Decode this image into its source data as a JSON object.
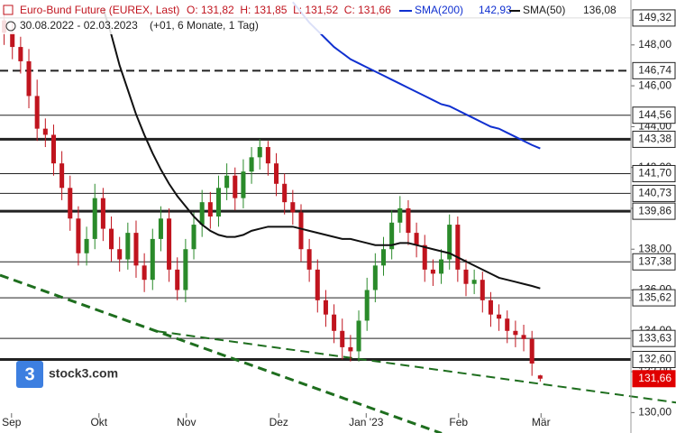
{
  "chart_data": {
    "type": "candlestick",
    "title": "Euro-Bund Future (EUREX, Last)",
    "ohlc_label": "O: 131,82  H: 131,85  L: 131,52  C: 131,66",
    "range_label": "30.08.2022 - 02.03.2023",
    "period_label": "(+01, 6 Monate, 1 Tag)",
    "logo": {
      "icon": "3",
      "text": "stock3.com"
    },
    "up_color": "#2a8a2a",
    "down_color": "#c0141e",
    "xlim": [
      -0.5,
      76
    ],
    "ylim": [
      129,
      150.2
    ],
    "xticks": [
      {
        "value": 0.9,
        "label": "Sep"
      },
      {
        "value": 11.5,
        "label": "Okt"
      },
      {
        "value": 22.1,
        "label": "Nov"
      },
      {
        "value": 33.3,
        "label": "Dez"
      },
      {
        "value": 43.9,
        "label": "Jan '23"
      },
      {
        "value": 55.1,
        "label": "Feb"
      },
      {
        "value": 65.1,
        "label": "Mär"
      }
    ],
    "yticks": [
      {
        "value": 130,
        "label": "130,00"
      },
      {
        "value": 132,
        "label": "132,00"
      },
      {
        "value": 134,
        "label": "134,00"
      },
      {
        "value": 136,
        "label": "136,00"
      },
      {
        "value": 138,
        "label": "138,00"
      },
      {
        "value": 140,
        "label": "140,00"
      },
      {
        "value": 142,
        "label": "142,00"
      },
      {
        "value": 144,
        "label": "144,00"
      },
      {
        "value": 146,
        "label": "146,00"
      },
      {
        "value": 148,
        "label": "148,00"
      }
    ],
    "candles": {
      "open": [
        149.2,
        148.6,
        147.9,
        147.2,
        145.5,
        143.9,
        143.6,
        142.2,
        141.0,
        139.5,
        137.8,
        138.5,
        140.5,
        139.0,
        138.0,
        137.5,
        138.8,
        137.2,
        136.5,
        138.5,
        139.5,
        137.0,
        136.0,
        138.0,
        139.2,
        140.3,
        139.6,
        141.0,
        141.6,
        140.5,
        141.8,
        142.5,
        143.0,
        142.2,
        141.2,
        140.3,
        139.8,
        138.0,
        137.0,
        135.5,
        134.8,
        134.0,
        133.2,
        133.0,
        134.5,
        136.0,
        137.2,
        138.0,
        139.3,
        140.0,
        138.8,
        138.2,
        137.0,
        136.8,
        137.5,
        139.2,
        137.0,
        136.3,
        136.5,
        135.5,
        134.8,
        134.6,
        134.0,
        133.8,
        133.6,
        131.82
      ],
      "high": [
        149.8,
        149.1,
        148.4,
        147.8,
        146.3,
        144.4,
        144.1,
        142.8,
        141.6,
        140.1,
        139.1,
        141.2,
        141.0,
        139.6,
        138.6,
        139.3,
        139.4,
        137.8,
        139.0,
        140.1,
        140.0,
        137.6,
        138.5,
        139.8,
        140.9,
        140.8,
        141.6,
        142.2,
        142.0,
        142.4,
        143.0,
        143.4,
        143.3,
        142.7,
        141.7,
        140.9,
        140.2,
        138.5,
        137.5,
        136.0,
        135.3,
        134.6,
        133.8,
        135.0,
        136.6,
        137.8,
        138.6,
        139.9,
        140.6,
        140.4,
        139.3,
        138.7,
        137.5,
        138.0,
        139.7,
        139.6,
        137.5,
        137.0,
        136.9,
        135.9,
        135.3,
        135.0,
        134.5,
        134.3,
        134.0,
        131.85
      ],
      "low": [
        148.0,
        147.3,
        146.6,
        144.9,
        143.3,
        143.0,
        141.6,
        140.4,
        138.9,
        137.2,
        137.2,
        138.0,
        138.4,
        137.4,
        136.9,
        137.0,
        136.6,
        135.9,
        136.0,
        137.9,
        136.4,
        135.5,
        135.4,
        137.5,
        138.6,
        139.0,
        139.1,
        140.4,
        139.9,
        140.0,
        141.2,
        141.9,
        141.6,
        140.6,
        139.7,
        139.2,
        137.4,
        136.4,
        134.9,
        134.2,
        133.4,
        132.6,
        132.5,
        132.5,
        134.0,
        135.4,
        136.7,
        137.5,
        138.8,
        138.2,
        137.6,
        136.4,
        136.2,
        136.3,
        137.0,
        136.4,
        135.7,
        135.8,
        134.9,
        134.2,
        134.0,
        133.4,
        133.2,
        133.0,
        131.8,
        131.52
      ],
      "close": [
        148.6,
        147.9,
        147.2,
        145.5,
        143.9,
        143.6,
        142.2,
        141.0,
        139.5,
        137.8,
        138.5,
        140.5,
        139.0,
        138.0,
        137.5,
        138.8,
        137.2,
        136.5,
        138.5,
        139.5,
        137.0,
        136.0,
        138.0,
        139.2,
        140.3,
        139.6,
        141.0,
        141.6,
        140.5,
        141.8,
        142.5,
        143.0,
        142.2,
        141.2,
        140.3,
        139.8,
        138.0,
        137.0,
        135.5,
        134.8,
        134.0,
        133.2,
        133.0,
        134.5,
        136.0,
        137.2,
        138.0,
        139.3,
        140.0,
        138.8,
        138.2,
        137.0,
        136.8,
        137.5,
        139.2,
        137.0,
        136.3,
        136.5,
        135.5,
        134.8,
        134.6,
        134.0,
        133.8,
        133.6,
        132.4,
        131.66
      ]
    },
    "series": [
      {
        "name": "SMA(200)",
        "value_label": "142,93",
        "color": "#1030d0",
        "values": [
          null,
          null,
          null,
          null,
          null,
          null,
          null,
          null,
          null,
          null,
          null,
          null,
          null,
          null,
          null,
          null,
          null,
          null,
          null,
          null,
          null,
          null,
          null,
          null,
          null,
          null,
          null,
          null,
          null,
          null,
          null,
          null,
          null,
          null,
          null,
          150.1,
          149.6,
          149.1,
          148.7,
          148.3,
          147.9,
          147.6,
          147.3,
          147.1,
          146.9,
          146.7,
          146.5,
          146.3,
          146.1,
          145.9,
          145.7,
          145.5,
          145.3,
          145.1,
          145.0,
          144.8,
          144.6,
          144.4,
          144.2,
          144.0,
          143.9,
          143.7,
          143.5,
          143.3,
          143.1,
          142.93
        ]
      },
      {
        "name": "SMA(50)",
        "value_label": "136,08",
        "color": "#111111",
        "values": [
          null,
          null,
          null,
          null,
          null,
          null,
          null,
          null,
          null,
          null,
          null,
          null,
          149.8,
          148.5,
          147.0,
          145.8,
          144.6,
          143.6,
          142.7,
          141.9,
          141.2,
          140.6,
          140.1,
          139.6,
          139.2,
          138.9,
          138.7,
          138.6,
          138.6,
          138.7,
          138.9,
          139.0,
          139.1,
          139.1,
          139.1,
          139.1,
          139.0,
          138.9,
          138.8,
          138.7,
          138.6,
          138.5,
          138.5,
          138.4,
          138.3,
          138.2,
          138.2,
          138.2,
          138.3,
          138.3,
          138.2,
          138.1,
          138.0,
          137.9,
          137.8,
          137.6,
          137.4,
          137.2,
          137.0,
          136.8,
          136.6,
          136.5,
          136.4,
          136.3,
          136.2,
          136.08
        ]
      }
    ],
    "trendlines": [
      {
        "color": "#1e6e1e",
        "width": 3,
        "x": [
          -0.5,
          53.05
        ],
        "y": [
          136.73,
          128.98
        ]
      },
      {
        "color": "#1e6e1e",
        "width": 2,
        "x": [
          18.6,
          81.5
        ],
        "y": [
          133.98,
          130.49
        ]
      }
    ],
    "levels": [
      {
        "value": 149.32,
        "label": "149,32",
        "style": "thin"
      },
      {
        "value": 146.74,
        "label": "146,74",
        "style": "dashed"
      },
      {
        "value": 144.56,
        "label": "144,56",
        "style": "thin"
      },
      {
        "value": 143.38,
        "label": "143,38",
        "style": "thick"
      },
      {
        "value": 141.7,
        "label": "141,70",
        "style": "thin"
      },
      {
        "value": 140.73,
        "label": "140,73",
        "style": "thin"
      },
      {
        "value": 139.86,
        "label": "139,86",
        "style": "thick"
      },
      {
        "value": 137.38,
        "label": "137,38",
        "style": "thin"
      },
      {
        "value": 135.62,
        "label": "135,62",
        "style": "thin"
      },
      {
        "value": 133.63,
        "label": "133,63",
        "style": "thin"
      },
      {
        "value": 132.6,
        "label": "132,60",
        "style": "thick"
      },
      {
        "value": 131.66,
        "label": "131,66",
        "style": "last"
      }
    ]
  }
}
